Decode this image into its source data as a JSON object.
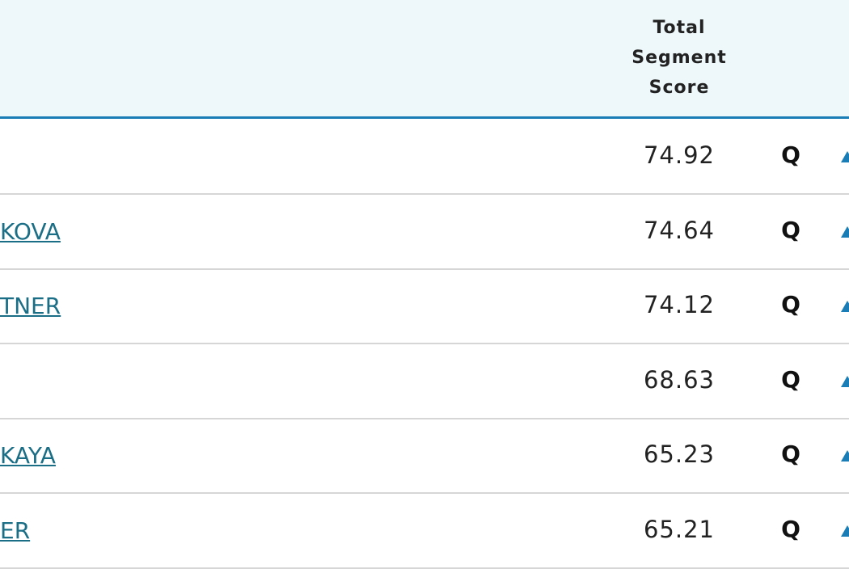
{
  "table": {
    "header": {
      "score": "Total Segment Score"
    },
    "rows": [
      {
        "score": "74.92",
        "qual": "Q"
      },
      {
        "name": "KOVA",
        "score": "74.64",
        "qual": "Q"
      },
      {
        "name": "TNER",
        "score": "74.12",
        "qual": "Q"
      },
      {
        "score": "68.63",
        "qual": "Q"
      },
      {
        "name": "KAYA",
        "score": "65.23",
        "qual": "Q"
      },
      {
        "name": "ER",
        "score": "65.21",
        "qual": "Q"
      }
    ]
  }
}
